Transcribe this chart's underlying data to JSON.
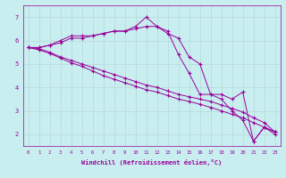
{
  "xlabel": "Windchill (Refroidissement éolien,°C)",
  "background_color": "#c8eef0",
  "line_color": "#990099",
  "grid_color": "#aadddd",
  "xlim": [
    -0.5,
    23.5
  ],
  "ylim": [
    1.5,
    7.5
  ],
  "xticks": [
    0,
    1,
    2,
    3,
    4,
    5,
    6,
    7,
    8,
    9,
    10,
    11,
    12,
    13,
    14,
    15,
    16,
    17,
    18,
    19,
    20,
    21,
    22,
    23
  ],
  "yticks": [
    2,
    3,
    4,
    5,
    6,
    7
  ],
  "series": [
    [
      5.7,
      5.7,
      5.8,
      6.0,
      6.2,
      6.2,
      6.2,
      6.3,
      6.4,
      6.4,
      6.6,
      7.0,
      6.6,
      6.3,
      6.1,
      5.3,
      5.0,
      3.7,
      3.7,
      3.5,
      3.8,
      1.7,
      2.3,
      2.1
    ],
    [
      5.7,
      5.7,
      5.8,
      5.9,
      6.1,
      6.1,
      6.2,
      6.3,
      6.4,
      6.4,
      6.5,
      6.6,
      6.6,
      6.4,
      5.4,
      4.6,
      3.7,
      3.7,
      3.5,
      3.0,
      2.6,
      1.7,
      2.3,
      2.1
    ],
    [
      5.7,
      5.65,
      5.5,
      5.3,
      5.15,
      5.0,
      4.85,
      4.7,
      4.55,
      4.4,
      4.25,
      4.1,
      4.0,
      3.85,
      3.7,
      3.6,
      3.5,
      3.4,
      3.25,
      3.1,
      2.95,
      2.7,
      2.5,
      2.1
    ],
    [
      5.7,
      5.6,
      5.45,
      5.25,
      5.05,
      4.9,
      4.7,
      4.5,
      4.35,
      4.2,
      4.05,
      3.9,
      3.8,
      3.65,
      3.5,
      3.4,
      3.28,
      3.15,
      3.0,
      2.85,
      2.7,
      2.5,
      2.3,
      2.0
    ]
  ]
}
